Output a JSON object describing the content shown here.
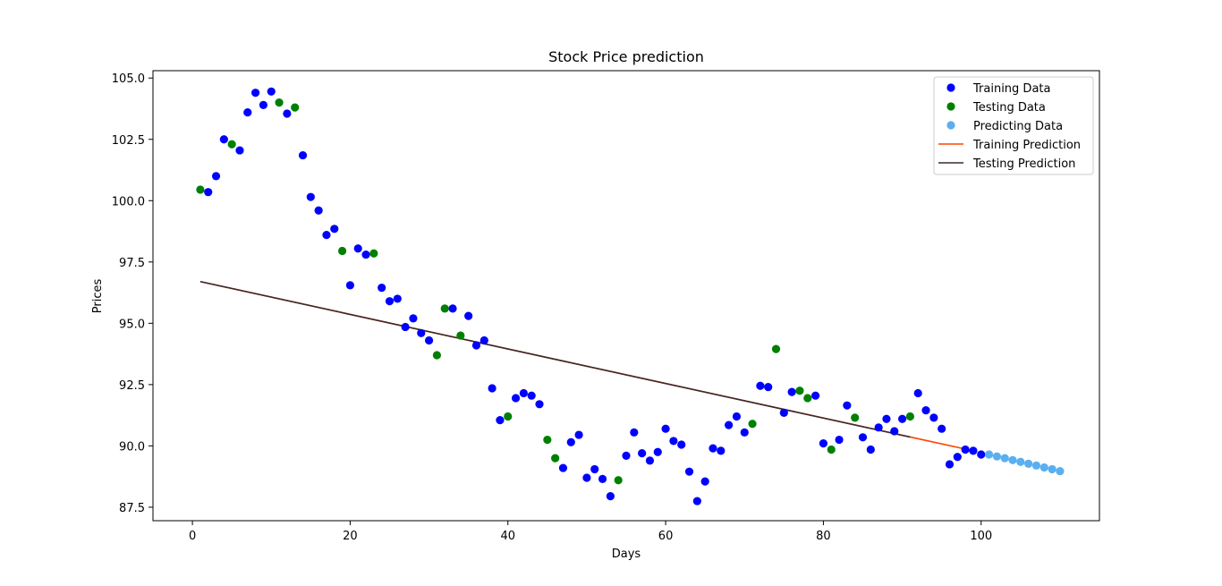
{
  "chart_data": {
    "type": "scatter",
    "title": "Stock Price prediction",
    "xlabel": "Days",
    "ylabel": "Prices",
    "xlim": [
      -5,
      115
    ],
    "ylim": [
      86.95,
      105.3
    ],
    "xticks": [
      0,
      20,
      40,
      60,
      80,
      100
    ],
    "yticks": [
      87.5,
      90.0,
      92.5,
      95.0,
      97.5,
      100.0,
      102.5,
      105.0
    ],
    "xtick_labels": [
      "0",
      "20",
      "40",
      "60",
      "80",
      "100"
    ],
    "ytick_labels": [
      "87.5",
      "90.0",
      "92.5",
      "95.0",
      "97.5",
      "100.0",
      "102.5",
      "105.0"
    ],
    "grid": false,
    "legend_position": "top-right",
    "legend": [
      {
        "label": "Training Data",
        "kind": "marker",
        "color": "#0000ff"
      },
      {
        "label": "Testing Data",
        "kind": "marker",
        "color": "#008000"
      },
      {
        "label": "Predicting Data",
        "kind": "marker",
        "color": "#5aaff0"
      },
      {
        "label": "Training Prediction",
        "kind": "line",
        "color": "#ff4500"
      },
      {
        "label": "Testing Prediction",
        "kind": "line",
        "color": "#3b2a2a"
      }
    ],
    "series": [
      {
        "name": "Training Data",
        "color": "#0000ff",
        "x": [
          2,
          3,
          4,
          6,
          7,
          8,
          9,
          10,
          12,
          14,
          15,
          16,
          17,
          18,
          20,
          21,
          22,
          24,
          25,
          26,
          27,
          28,
          29,
          30,
          33,
          35,
          36,
          37,
          38,
          39,
          41,
          42,
          43,
          44,
          47,
          48,
          49,
          50,
          51,
          52,
          53,
          55,
          56,
          57,
          58,
          59,
          60,
          61,
          62,
          63,
          64,
          65,
          66,
          67,
          68,
          69,
          70,
          72,
          73,
          75,
          76,
          79,
          80,
          82,
          83,
          85,
          86,
          87,
          88,
          89,
          90,
          92,
          93,
          94,
          95,
          96,
          97,
          98,
          99,
          100
        ],
        "y": [
          100.35,
          101.0,
          102.5,
          102.05,
          103.6,
          104.4,
          103.9,
          104.45,
          103.55,
          101.85,
          100.15,
          99.6,
          98.6,
          98.85,
          96.55,
          98.05,
          97.8,
          96.45,
          95.9,
          96.0,
          94.85,
          95.2,
          94.6,
          94.3,
          95.6,
          95.3,
          94.1,
          94.3,
          92.35,
          91.05,
          91.95,
          92.15,
          92.05,
          91.7,
          89.1,
          90.15,
          90.45,
          88.7,
          89.05,
          88.65,
          87.95,
          89.6,
          90.55,
          89.7,
          89.4,
          89.75,
          90.7,
          90.2,
          90.05,
          88.95,
          87.75,
          88.55,
          89.9,
          89.8,
          90.85,
          91.2,
          90.55,
          92.45,
          92.4,
          91.35,
          92.2,
          92.05,
          90.1,
          90.25,
          91.65,
          90.35,
          89.85,
          90.75,
          91.1,
          90.6,
          91.1,
          92.15,
          91.45,
          91.15,
          90.7,
          89.25,
          89.55,
          89.85,
          89.8,
          89.65
        ]
      },
      {
        "name": "Testing Data",
        "color": "#008000",
        "x": [
          1,
          5,
          11,
          13,
          19,
          23,
          31,
          32,
          34,
          40,
          45,
          46,
          54,
          71,
          74,
          77,
          78,
          81,
          84,
          91
        ],
        "y": [
          100.45,
          102.3,
          104.0,
          103.8,
          97.95,
          97.85,
          93.7,
          95.6,
          94.5,
          91.2,
          90.25,
          89.5,
          88.6,
          90.9,
          93.95,
          92.25,
          91.95,
          89.85,
          91.15,
          91.2
        ]
      },
      {
        "name": "Predicting Data",
        "color": "#5aaff0",
        "x": [
          101,
          102,
          103,
          104,
          105,
          106,
          107,
          108,
          109,
          110
        ],
        "y": [
          89.65,
          89.57,
          89.5,
          89.42,
          89.35,
          89.27,
          89.2,
          89.12,
          89.05,
          88.97
        ]
      },
      {
        "name": "Training Prediction",
        "color": "#ff4500",
        "x": [
          1,
          99
        ],
        "y": [
          96.7,
          89.8
        ]
      },
      {
        "name": "Testing Prediction",
        "color": "#3b2a2a",
        "x": [
          1,
          91
        ],
        "y": [
          96.7,
          90.36
        ]
      }
    ]
  }
}
